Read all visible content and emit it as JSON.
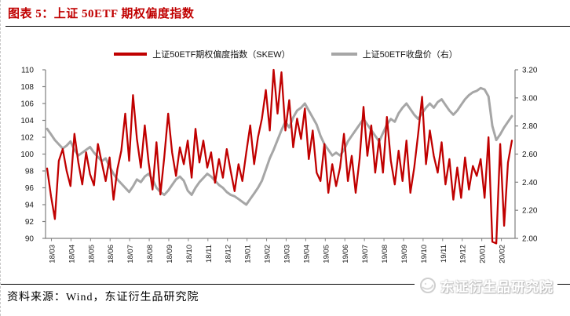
{
  "figure": {
    "title": "图表 5：上证 50ETF 期权偏度指数",
    "source": "资料来源：Wind，东证衍生品研究院",
    "watermark": "东证衍生品研究院"
  },
  "legend": [
    {
      "label": "上证50ETF期权偏度指数（SKEW）",
      "color": "#c00000"
    },
    {
      "label": "上证50ETF收盘价（右）",
      "color": "#a6a6a6"
    }
  ],
  "chart_data": {
    "type": "line",
    "title": "上证50ETF期权偏度指数",
    "legend_position": "top",
    "grid": false,
    "x_labels": [
      "18/03",
      "18/04",
      "18/05",
      "18/06",
      "18/07",
      "18/08",
      "18/09",
      "18/10",
      "18/11",
      "18/12",
      "19/01",
      "19/02",
      "19/03",
      "19/04",
      "19/05",
      "19/06",
      "19/07",
      "19/08",
      "19/09",
      "19/10",
      "19/11",
      "19/12",
      "20/01",
      "20/02"
    ],
    "axes": {
      "color": "#808080",
      "left": {
        "min": 90,
        "max": 110,
        "step": 2,
        "ticks": [
          "90",
          "92",
          "94",
          "96",
          "98",
          "100",
          "102",
          "104",
          "106",
          "108",
          "110"
        ]
      },
      "right": {
        "min": 2.0,
        "max": 3.2,
        "step": 0.2,
        "ticks": [
          "2.00",
          "2.20",
          "2.40",
          "2.60",
          "2.80",
          "3.00",
          "3.20"
        ]
      }
    },
    "series": [
      {
        "name": "上证50ETF期权偏度指数（SKEW）",
        "axis": "left",
        "color": "#c00000",
        "width": 2.3,
        "values": [
          98.3,
          95.0,
          92.3,
          99.2,
          100.6,
          98.0,
          96.2,
          102.4,
          99.0,
          96.4,
          100.2,
          97.6,
          96.3,
          101.2,
          99.0,
          96.8,
          99.6,
          94.6,
          98.2,
          100.4,
          104.8,
          99.2,
          107.0,
          101.8,
          98.4,
          103.4,
          99.0,
          95.8,
          101.4,
          95.2,
          99.6,
          104.8,
          100.2,
          97.4,
          100.8,
          98.8,
          101.6,
          97.2,
          103.0,
          99.0,
          101.6,
          98.4,
          100.2,
          96.6,
          99.4,
          97.2,
          100.6,
          98.0,
          95.6,
          98.8,
          96.8,
          100.2,
          103.4,
          98.8,
          102.0,
          104.2,
          107.6,
          102.8,
          110.0,
          104.8,
          109.7,
          102.8,
          106.4,
          100.8,
          104.2,
          101.8,
          105.4,
          99.4,
          102.8,
          97.8,
          96.8,
          101.2,
          95.4,
          98.8,
          96.2,
          98.4,
          102.4,
          96.8,
          99.8,
          95.4,
          99.4,
          105.6,
          99.8,
          103.4,
          97.8,
          101.8,
          97.8,
          104.4,
          99.2,
          96.4,
          100.4,
          96.8,
          101.6,
          95.4,
          98.4,
          102.4,
          106.8,
          98.8,
          102.8,
          99.8,
          97.8,
          101.4,
          96.4,
          99.4,
          94.6,
          98.4,
          94.8,
          99.6,
          95.8,
          98.6,
          97.4,
          99.4,
          94.8,
          102.0,
          89.6,
          89.4,
          101.2,
          91.5,
          99.0,
          101.6
        ]
      },
      {
        "name": "上证50ETF收盘价（右）",
        "axis": "right",
        "color": "#a6a6a6",
        "width": 3,
        "values": [
          2.78,
          2.74,
          2.7,
          2.67,
          2.64,
          2.66,
          2.69,
          2.63,
          2.59,
          2.61,
          2.63,
          2.65,
          2.61,
          2.58,
          2.55,
          2.57,
          2.51,
          2.46,
          2.42,
          2.39,
          2.36,
          2.33,
          2.37,
          2.42,
          2.4,
          2.44,
          2.46,
          2.42,
          2.36,
          2.33,
          2.31,
          2.34,
          2.38,
          2.42,
          2.44,
          2.41,
          2.34,
          2.31,
          2.36,
          2.4,
          2.43,
          2.46,
          2.44,
          2.41,
          2.38,
          2.36,
          2.33,
          2.31,
          2.3,
          2.28,
          2.26,
          2.24,
          2.28,
          2.32,
          2.36,
          2.41,
          2.49,
          2.57,
          2.63,
          2.7,
          2.77,
          2.83,
          2.79,
          2.86,
          2.91,
          2.93,
          2.96,
          2.91,
          2.86,
          2.81,
          2.73,
          2.67,
          2.63,
          2.59,
          2.61,
          2.59,
          2.63,
          2.69,
          2.73,
          2.77,
          2.81,
          2.85,
          2.81,
          2.77,
          2.73,
          2.69,
          2.75,
          2.81,
          2.85,
          2.83,
          2.89,
          2.93,
          2.96,
          2.92,
          2.88,
          2.85,
          2.89,
          2.93,
          2.96,
          2.93,
          2.97,
          2.99,
          2.95,
          2.91,
          2.88,
          2.91,
          2.95,
          2.99,
          3.02,
          3.04,
          3.05,
          3.07,
          3.06,
          3.01,
          2.8,
          2.7,
          2.74,
          2.79,
          2.83,
          2.87
        ]
      }
    ]
  }
}
